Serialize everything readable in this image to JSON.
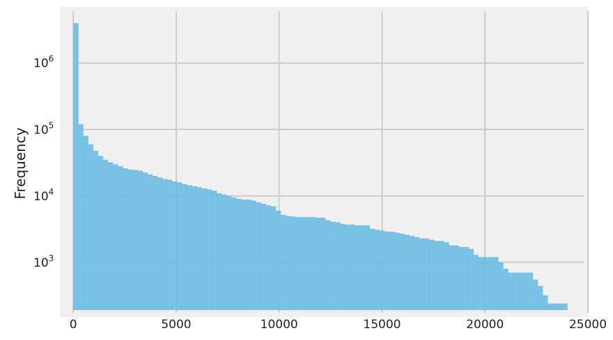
{
  "chart_data": {
    "type": "histogram",
    "ylabel": "Frequency",
    "xlabel": "",
    "title": "",
    "y_scale": "log",
    "grid": true,
    "xlim": [
      -650,
      25000
    ],
    "ylim": [
      150,
      7000000
    ],
    "x_ticks": [
      0,
      5000,
      10000,
      15000,
      20000,
      25000
    ],
    "x_tick_labels": [
      "0",
      "5000",
      "10000",
      "15000",
      "20000",
      "25000"
    ],
    "y_ticks": [
      1000,
      10000,
      100000,
      1000000
    ],
    "y_tick_labels": [
      {
        "base": "10",
        "exp": "3"
      },
      {
        "base": "10",
        "exp": "4"
      },
      {
        "base": "10",
        "exp": "5"
      },
      {
        "base": "10",
        "exp": "6"
      }
    ],
    "bin_start": 0,
    "bin_width": 240,
    "values": [
      4000000,
      120000,
      80000,
      60000,
      48000,
      40000,
      35000,
      32000,
      30000,
      28000,
      26000,
      25000,
      24500,
      24000,
      22500,
      21000,
      20000,
      19000,
      18000,
      17500,
      16500,
      16000,
      15000,
      14500,
      14000,
      13500,
      13000,
      12500,
      12000,
      11000,
      10500,
      10000,
      9500,
      9000,
      8800,
      8800,
      8500,
      8000,
      7600,
      7200,
      7000,
      6000,
      5200,
      5000,
      4900,
      4800,
      4800,
      4800,
      4800,
      4700,
      4700,
      4300,
      4100,
      4000,
      3800,
      3700,
      3700,
      3600,
      3600,
      3600,
      3200,
      3100,
      3000,
      2900,
      2900,
      2800,
      2700,
      2600,
      2500,
      2400,
      2300,
      2300,
      2200,
      2100,
      2100,
      2000,
      1800,
      1800,
      1700,
      1700,
      1600,
      1300,
      1200,
      1200,
      1200,
      1200,
      1000,
      800,
      700,
      700,
      700,
      700,
      700,
      550,
      440,
      320,
      240,
      240,
      240,
      240
    ],
    "colors": {
      "bar": "#6abde3",
      "background": "#f0f0f0",
      "grid": "#cbcbcb",
      "text": "#222222"
    }
  }
}
